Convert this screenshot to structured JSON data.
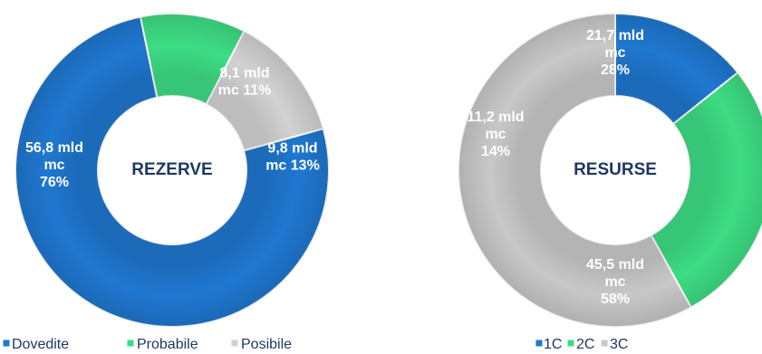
{
  "chart_data": [
    {
      "type": "pie",
      "variant": "donut",
      "title": "REZERVE",
      "categories": [
        "Dovedite",
        "Probabile",
        "Posibile"
      ],
      "values": [
        56.8,
        8.1,
        9.8
      ],
      "percent": [
        76,
        11,
        13
      ],
      "unit": "mld mc",
      "colors": [
        "#1f77d0",
        "#3ddc84",
        "#d2d2d2"
      ],
      "labels": [
        [
          "56,8 mld",
          "mc",
          "76%"
        ],
        [
          "8,1 mld",
          "mc 11%"
        ],
        [
          "9,8 mld",
          "mc  13%"
        ]
      ],
      "legend": [
        "Dovedite",
        "Probabile",
        "Posibile"
      ],
      "legend_position": "bottom"
    },
    {
      "type": "pie",
      "variant": "donut",
      "title": "RESURSE",
      "categories": [
        "1C",
        "2C",
        "3C"
      ],
      "values": [
        11.2,
        21.7,
        45.5
      ],
      "percent": [
        14,
        28,
        58
      ],
      "unit": "mld mc",
      "colors": [
        "#1f77d0",
        "#3ddc84",
        "#c8c8c8"
      ],
      "labels": [
        [
          "11,2 mld",
          "mc",
          "14%"
        ],
        [
          "21,7 mld",
          "mc",
          "28%"
        ],
        [
          "45,5 mld",
          "mc",
          "58%"
        ]
      ],
      "legend": [
        "1C",
        "2C",
        "3C"
      ],
      "legend_position": "bottom"
    }
  ]
}
